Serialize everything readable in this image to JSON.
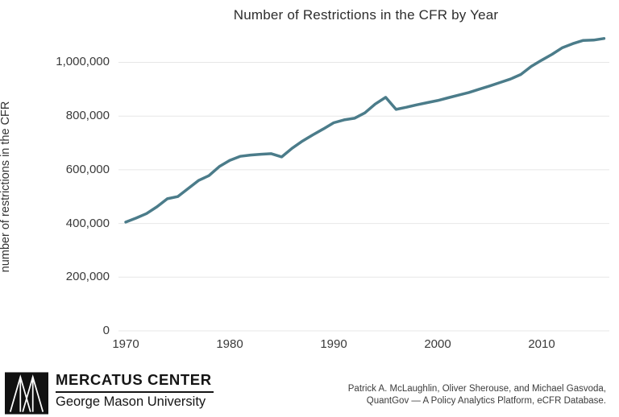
{
  "chart": {
    "title": "Number of Restrictions in the CFR by Year",
    "ylabel": "number of restrictions in the CFR"
  },
  "chart_data": {
    "type": "line",
    "title": "Number of Restrictions in the CFR by Year",
    "xlabel": "",
    "ylabel": "number of restrictions in the CFR",
    "series_name": "restrictions in the CFR",
    "x": [
      1970,
      1971,
      1972,
      1973,
      1974,
      1975,
      1976,
      1977,
      1978,
      1979,
      1980,
      1981,
      1982,
      1983,
      1984,
      1985,
      1986,
      1987,
      1988,
      1989,
      1990,
      1991,
      1992,
      1993,
      1994,
      1995,
      1996,
      1997,
      1998,
      1999,
      2000,
      2001,
      2002,
      2003,
      2004,
      2005,
      2006,
      2007,
      2008,
      2009,
      2010,
      2011,
      2012,
      2013,
      2014,
      2015,
      2016
    ],
    "values": [
      405000,
      420000,
      437000,
      462000,
      492000,
      500000,
      530000,
      560000,
      578000,
      612000,
      635000,
      650000,
      655000,
      658000,
      660000,
      648000,
      680000,
      707000,
      730000,
      752000,
      775000,
      786000,
      792000,
      812000,
      845000,
      870000,
      825000,
      833000,
      842000,
      850000,
      858000,
      868000,
      878000,
      888000,
      900000,
      912000,
      925000,
      938000,
      955000,
      985000,
      1008000,
      1030000,
      1055000,
      1070000,
      1082000,
      1083000,
      1089000
    ],
    "xticks": [
      1970,
      1980,
      1990,
      2000,
      2010
    ],
    "yticks": [
      0,
      200000,
      400000,
      600000,
      800000,
      1000000
    ],
    "ytick_labels": [
      "0",
      "200,000",
      "400,000",
      "600,000",
      "800,000",
      "1,000,000"
    ],
    "xlim": [
      1969,
      2017
    ],
    "ylim": [
      0,
      1120000
    ],
    "grid": "horizontal",
    "legend": "none",
    "line_color": "#4b7c8a",
    "gridline_color": "#e7e7e7"
  },
  "footer": {
    "logo": {
      "icon": "mercatus-bridge-logo",
      "org": "MERCATUS CENTER",
      "sub": "George Mason University"
    },
    "credit_line1": "Patrick A. McLaughlin, Oliver Sherouse, and Michael Gasvoda,",
    "credit_line2": "QuantGov — A Policy Analytics Platform, eCFR Database."
  }
}
